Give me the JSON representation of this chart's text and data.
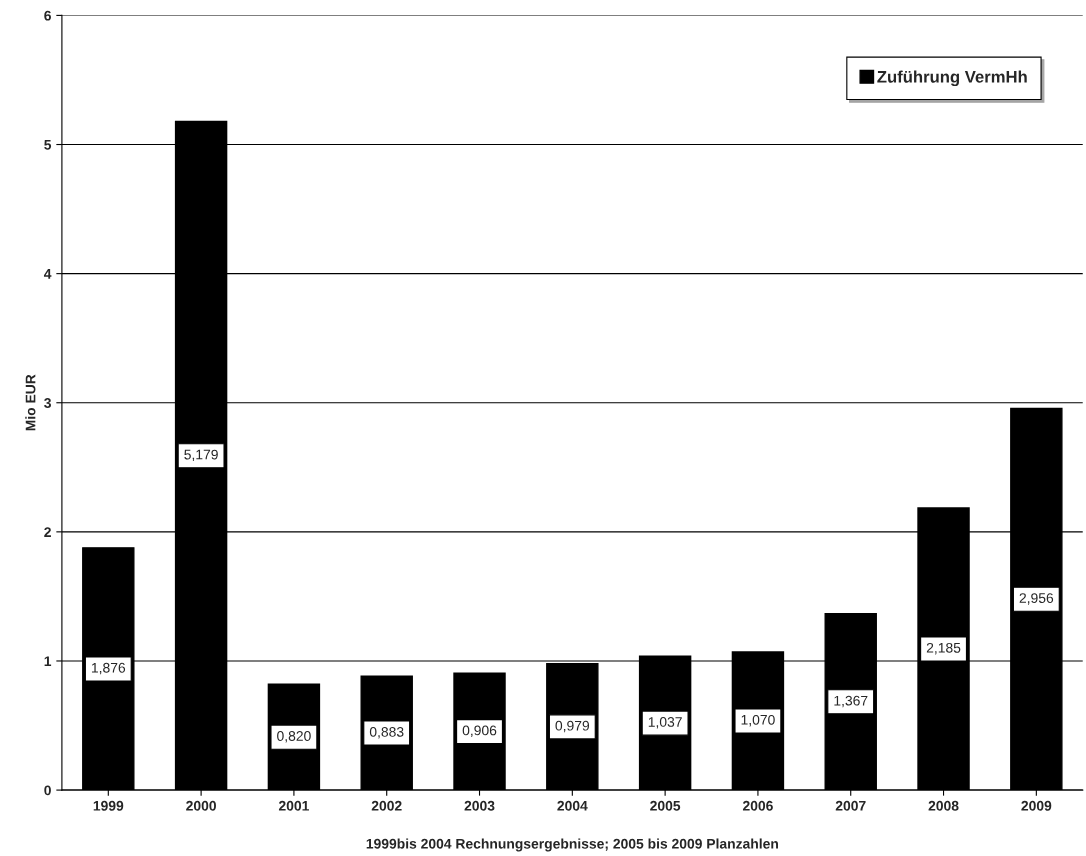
{
  "chart_data": {
    "type": "bar",
    "categories": [
      "1999",
      "2000",
      "2001",
      "2002",
      "2003",
      "2004",
      "2005",
      "2006",
      "2007",
      "2008",
      "2009"
    ],
    "series": [
      {
        "name": "Zuführung VermHh",
        "color": "#000000",
        "values": [
          1.876,
          5.179,
          0.82,
          0.883,
          0.906,
          0.979,
          1.037,
          1.07,
          1.367,
          2.185,
          2.956
        ],
        "value_labels": [
          "1,876",
          "5,179",
          "0,820",
          "0,883",
          "0,906",
          "0,979",
          "1,037",
          "1,070",
          "1,367",
          "2,185",
          "2,956"
        ]
      }
    ],
    "ylabel": "Mio EUR",
    "xlabel": "1999bis 2004 Rechnungsergebnisse; 2005 bis 2009 Planzahlen",
    "ylim": [
      0,
      6
    ],
    "yticks": [
      0,
      1,
      2,
      3,
      4,
      5,
      6
    ],
    "grid": "y",
    "legend": "top right"
  }
}
